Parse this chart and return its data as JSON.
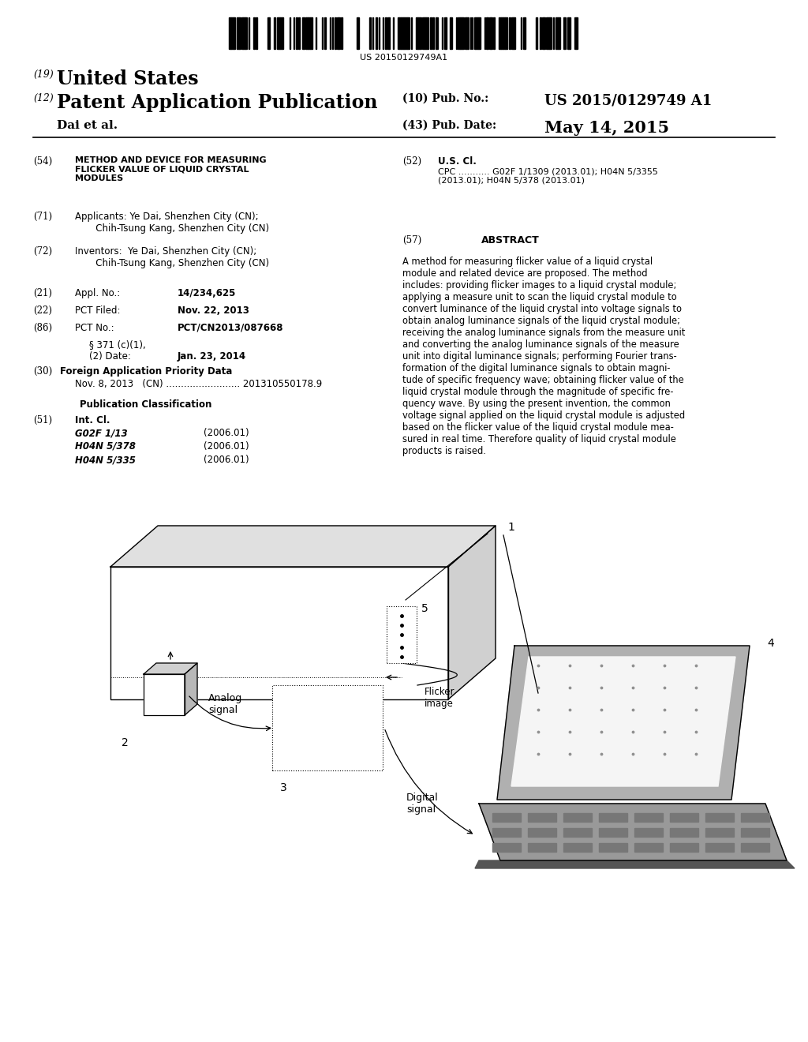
{
  "background_color": "#ffffff",
  "barcode_text": "US 20150129749A1",
  "header": {
    "country_prefix": "(19)",
    "country": "United States",
    "type_prefix": "(12)",
    "type": "Patent Application Publication",
    "pub_no_prefix": "(10) Pub. No.:",
    "pub_no": "US 2015/0129749 A1",
    "inventor_line": "Dai et al.",
    "pub_date_prefix": "(43) Pub. Date:",
    "pub_date": "May 14, 2015"
  },
  "fields": {
    "title_num": "(54)",
    "title": "METHOD AND DEVICE FOR MEASURING\nFLICKER VALUE OF LIQUID CRYSTAL\nMODULES",
    "us_cl_num": "(52)",
    "us_cl_label": "U.S. Cl.",
    "cpc_line": "CPC ........... G02F 1/1309 (2013.01); H04N 5/3355\n(2013.01); H04N 5/378 (2013.01)",
    "applicants_num": "(71)",
    "applicants_line1": "Applicants: Ye Dai, Shenzhen City (CN);",
    "applicants_line2": "       Chih-Tsung Kang, Shenzhen City (CN)",
    "abstract_num": "(57)",
    "abstract_label": "ABSTRACT",
    "inventors_num": "(72)",
    "inventors_line1": "Inventors:  Ye Dai, Shenzhen City (CN);",
    "inventors_line2": "       Chih-Tsung Kang, Shenzhen City (CN)",
    "appl_no_num": "(21)",
    "appl_no_label": "Appl. No.:",
    "appl_no": "14/234,625",
    "pct_filed_num": "(22)",
    "pct_filed_label": "PCT Filed:",
    "pct_filed": "Nov. 22, 2013",
    "pct_no_num": "(86)",
    "pct_no_label": "PCT No.:",
    "pct_no": "PCT/CN2013/087668",
    "s371_label": "§ 371 (c)(1),",
    "s371_label2": "(2) Date:",
    "s371_date": "Jan. 23, 2014",
    "foreign_num": "(30)",
    "foreign_label": "Foreign Application Priority Data",
    "foreign_data": "Nov. 8, 2013   (CN) ......................... 201310550178.9",
    "pub_class_label": "Publication Classification",
    "int_cl_num": "(51)",
    "int_cl_label": "Int. Cl.",
    "int_cl_entries": [
      [
        "G02F 1/13",
        "(2006.01)"
      ],
      [
        "H04N 5/378",
        "(2006.01)"
      ],
      [
        "H04N 5/335",
        "(2006.01)"
      ]
    ],
    "abstract_text": "A method for measuring flicker value of a liquid crystal\nmodule and related device are proposed. The method\nincludes: providing flicker images to a liquid crystal module;\napplying a measure unit to scan the liquid crystal module to\nconvert luminance of the liquid crystal into voltage signals to\nobtain analog luminance signals of the liquid crystal module;\nreceiving the analog luminance signals from the measure unit\nand converting the analog luminance signals of the measure\nunit into digital luminance signals; performing Fourier trans-\nformation of the digital luminance signals to obtain magni-\ntude of specific frequency wave; obtaining flicker value of the\nliquid crystal module through the magnitude of specific fre-\nquency wave. By using the present invention, the common\nvoltage signal applied on the liquid crystal module is adjusted\nbased on the flicker value of the liquid crystal module mea-\nsured in real time. Therefore quality of liquid crystal module\nproducts is raised."
  },
  "diagram": {
    "label_1": "1",
    "label_2": "2",
    "label_3": "3",
    "label_4": "4",
    "label_5": "5",
    "label_analog": "Analog\nsignal",
    "label_digital": "Digital\nsignal",
    "label_flicker": "Flicker\nimage"
  }
}
